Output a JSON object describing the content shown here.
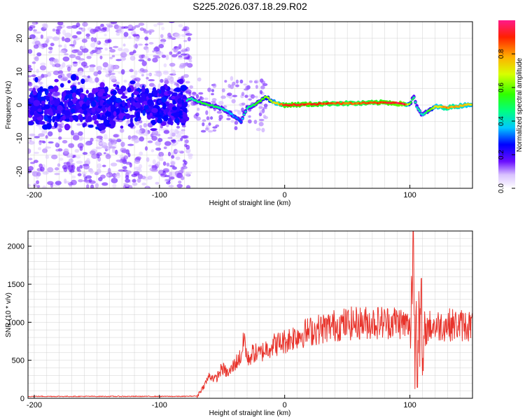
{
  "title": "S225.2026.037.18.29.R02",
  "colors": {
    "snr_line": "#e8332b",
    "grid": "#d0d0d0",
    "frame": "#000000"
  },
  "chart_data": [
    {
      "type": "heatmap",
      "name": "spectrogram",
      "xlabel": "Height of straight line (km)",
      "ylabel": "Frequency (Hz)",
      "xlim": [
        -205,
        150
      ],
      "ylim": [
        -25,
        25
      ],
      "xticks": [
        -200,
        -100,
        0,
        100
      ],
      "yticks": [
        -20,
        -10,
        0,
        10,
        20
      ],
      "grid": true,
      "colormap": "rainbow",
      "colorbar": {
        "label": "Normalized spectral amplitude",
        "range": [
          0,
          1
        ],
        "ticks": [
          "0.0",
          "0.2",
          "0.4",
          "0.6",
          "0.8"
        ]
      },
      "ridge": {
        "x": [
          -205,
          -180,
          -150,
          -120,
          -100,
          -85,
          -75,
          -65,
          -55,
          -50,
          -45,
          -40,
          -35,
          -30,
          -25,
          -20,
          -15,
          -10,
          -5,
          0,
          20,
          40,
          60,
          80,
          95,
          100,
          103,
          106,
          110,
          120,
          130,
          150
        ],
        "freq": [
          0,
          1,
          0,
          0.5,
          -0.5,
          0,
          2,
          0.5,
          -0.5,
          -1,
          -2,
          -3.5,
          -5,
          -1,
          0,
          1,
          2.5,
          1,
          0.3,
          0,
          0.2,
          0.5,
          0.5,
          0.8,
          0.3,
          0.2,
          2.5,
          -1,
          -3,
          -0.5,
          -0.8,
          0.3
        ],
        "amplitude": [
          0.25,
          0.3,
          0.3,
          0.3,
          0.3,
          0.3,
          0.45,
          0.5,
          0.5,
          0.45,
          0.35,
          0.3,
          0.3,
          0.45,
          0.5,
          0.55,
          0.6,
          0.65,
          0.75,
          0.9,
          0.9,
          0.85,
          0.85,
          0.9,
          0.95,
          0.6,
          0.45,
          0.4,
          0.4,
          0.7,
          0.8,
          0.7
        ]
      }
    },
    {
      "type": "line",
      "name": "snr",
      "xlabel": "Height of straight line (km)",
      "ylabel": "SNR (10 * v/v)",
      "xlim": [
        -205,
        150
      ],
      "ylim": [
        0,
        2200
      ],
      "xticks": [
        -200,
        -100,
        0,
        100
      ],
      "yticks": [
        0,
        500,
        1000,
        1500,
        2000
      ],
      "grid": true,
      "series": [
        {
          "name": "SNR",
          "x": [
            -205,
            -150,
            -100,
            -80,
            -70,
            -65,
            -60,
            -55,
            -50,
            -45,
            -40,
            -35,
            -32,
            -30,
            -25,
            -20,
            -15,
            -10,
            -5,
            0,
            10,
            20,
            30,
            40,
            50,
            60,
            70,
            80,
            90,
            95,
            98,
            100,
            102,
            103,
            104,
            105,
            106,
            107,
            108,
            109,
            110,
            112,
            115,
            120,
            130,
            140,
            150
          ],
          "y": [
            25,
            25,
            25,
            25,
            30,
            150,
            300,
            250,
            400,
            320,
            450,
            550,
            800,
            500,
            600,
            580,
            650,
            700,
            720,
            750,
            830,
            880,
            920,
            960,
            980,
            990,
            1000,
            1000,
            1010,
            980,
            960,
            900,
            1700,
            2200,
            200,
            1400,
            50,
            1500,
            700,
            1350,
            300,
            850,
            950,
            950,
            970,
            960,
            960
          ]
        }
      ]
    }
  ]
}
